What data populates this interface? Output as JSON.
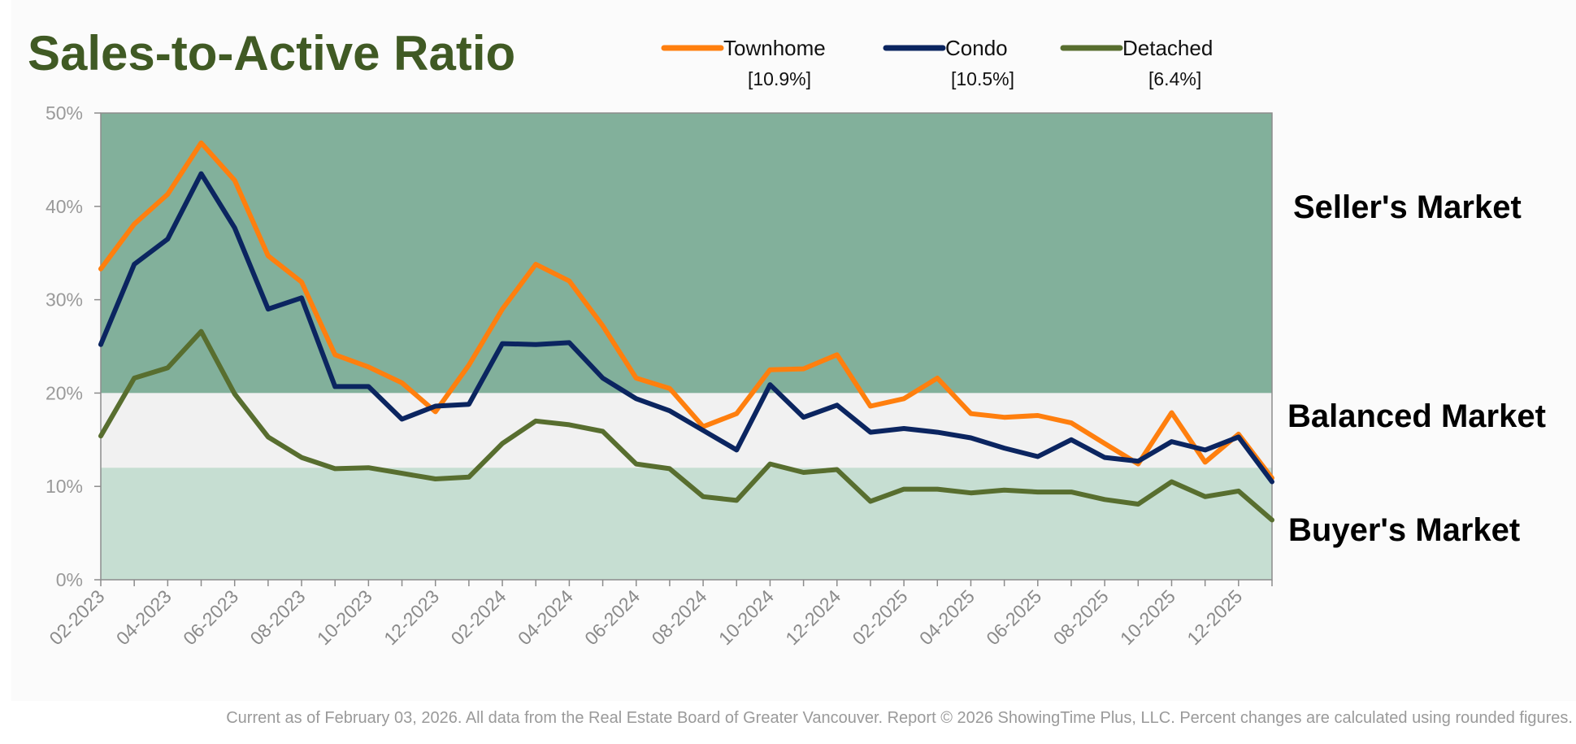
{
  "chart_data": {
    "type": "line",
    "title": "Sales-to-Active Ratio",
    "xlabel": "",
    "ylabel": "",
    "ylim": [
      0,
      50
    ],
    "yticks": [
      "0%",
      "10%",
      "20%",
      "30%",
      "40%",
      "50%"
    ],
    "ytick_values": [
      0,
      10,
      20,
      30,
      40,
      50
    ],
    "x": [
      "02-2023",
      "03-2023",
      "04-2023",
      "05-2023",
      "06-2023",
      "07-2023",
      "08-2023",
      "09-2023",
      "10-2023",
      "11-2023",
      "12-2023",
      "01-2024",
      "02-2024",
      "03-2024",
      "04-2024",
      "05-2024",
      "06-2024",
      "07-2024",
      "08-2024",
      "09-2024",
      "10-2024",
      "11-2024",
      "12-2024",
      "01-2025",
      "02-2025",
      "03-2025",
      "04-2025",
      "05-2025",
      "06-2025",
      "07-2025",
      "08-2025",
      "09-2025",
      "10-2025",
      "11-2025",
      "12-2025",
      "01-2026"
    ],
    "xtick_labels": [
      "02-2023",
      "04-2023",
      "06-2023",
      "08-2023",
      "10-2023",
      "12-2023",
      "02-2024",
      "04-2024",
      "06-2024",
      "08-2024",
      "10-2024",
      "12-2024",
      "02-2025",
      "04-2025",
      "06-2025",
      "08-2025",
      "10-2025",
      "12-2025"
    ],
    "zones": [
      {
        "name": "Seller's Market",
        "from": 20,
        "to": 50,
        "color": "#82b09b"
      },
      {
        "name": "Balanced Market",
        "from": 12,
        "to": 20,
        "color": "#f1f1f1"
      },
      {
        "name": "Buyer's Market",
        "from": 0,
        "to": 12,
        "color": "#c6ded2"
      }
    ],
    "series": [
      {
        "name": "Townhome",
        "current": "[10.9%]",
        "color": "#ff7f0e",
        "values": [
          33.3,
          38.1,
          41.3,
          46.8,
          42.8,
          34.7,
          31.9,
          24.1,
          22.8,
          21.1,
          18.0,
          23.0,
          29.0,
          33.8,
          32.0,
          27.2,
          21.6,
          20.5,
          16.4,
          17.8,
          22.5,
          22.6,
          24.1,
          18.6,
          19.4,
          21.6,
          17.8,
          17.4,
          17.6,
          16.8,
          14.6,
          12.4,
          17.9,
          12.6,
          15.6,
          10.9
        ]
      },
      {
        "name": "Condo",
        "current": "[10.5%]",
        "color": "#0b2560",
        "values": [
          25.2,
          33.8,
          36.5,
          43.5,
          37.7,
          29.0,
          30.2,
          20.7,
          20.7,
          17.2,
          18.6,
          18.8,
          25.3,
          25.2,
          25.4,
          21.6,
          19.4,
          18.1,
          16.0,
          13.9,
          20.9,
          17.4,
          18.7,
          15.8,
          16.2,
          15.8,
          15.2,
          14.1,
          13.2,
          15.0,
          13.1,
          12.7,
          14.8,
          13.9,
          15.3,
          10.5
        ]
      },
      {
        "name": "Detached",
        "current": "[6.4%]",
        "color": "#586e2f",
        "values": [
          15.4,
          21.6,
          22.7,
          26.6,
          19.9,
          15.3,
          13.1,
          11.9,
          12.0,
          11.4,
          10.8,
          11.0,
          14.6,
          17.0,
          16.6,
          15.9,
          12.4,
          11.9,
          8.9,
          8.5,
          12.4,
          11.5,
          11.8,
          8.4,
          9.7,
          9.7,
          9.3,
          9.6,
          9.4,
          9.4,
          8.6,
          8.1,
          10.5,
          8.9,
          9.5,
          6.4
        ]
      }
    ]
  },
  "footer": "Current as of February 03, 2026. All data from the Real Estate Board of Greater Vancouver.  Report © 2026 ShowingTime Plus, LLC. Percent changes are calculated using rounded figures."
}
